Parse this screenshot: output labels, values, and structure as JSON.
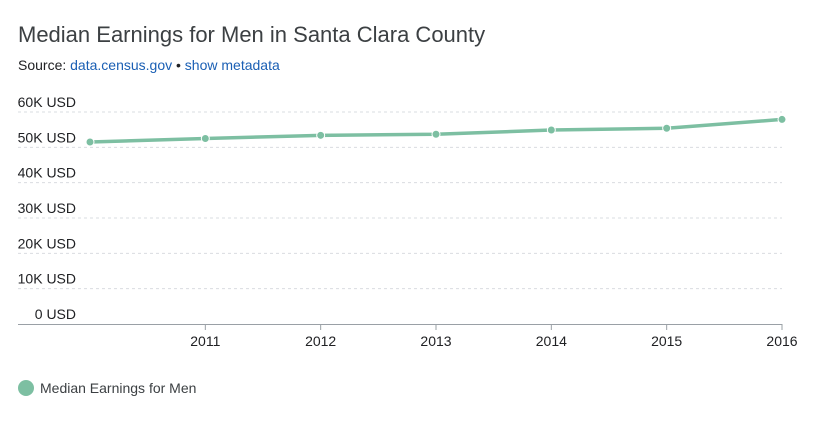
{
  "header": {
    "title": "Median Earnings for Men in Santa Clara County",
    "source_prefix": "Source: ",
    "source_link": "data.census.gov",
    "separator": " • ",
    "metadata_link": "show metadata"
  },
  "legend": {
    "label": "Median Earnings for Men"
  },
  "colors": {
    "series": "#7dbfa2",
    "grid": "#dadce0",
    "axis": "#9aa0a6",
    "link": "#1a5fb4"
  },
  "chart_data": {
    "type": "line",
    "title": "Median Earnings for Men in Santa Clara County",
    "xlabel": "",
    "ylabel": "",
    "x": [
      2010,
      2011,
      2012,
      2013,
      2014,
      2015,
      2016
    ],
    "x_tick_labels": [
      "2011",
      "2012",
      "2013",
      "2014",
      "2015",
      "2016"
    ],
    "y_tick_labels": [
      "0 USD",
      "10K USD",
      "20K USD",
      "30K USD",
      "40K USD",
      "50K USD",
      "60K USD"
    ],
    "ylim": [
      0,
      60000
    ],
    "grid": true,
    "legend_position": "bottom-left",
    "series": [
      {
        "name": "Median Earnings for Men",
        "values": [
          51500,
          52500,
          53400,
          53700,
          54900,
          55400,
          57900
        ]
      }
    ]
  }
}
